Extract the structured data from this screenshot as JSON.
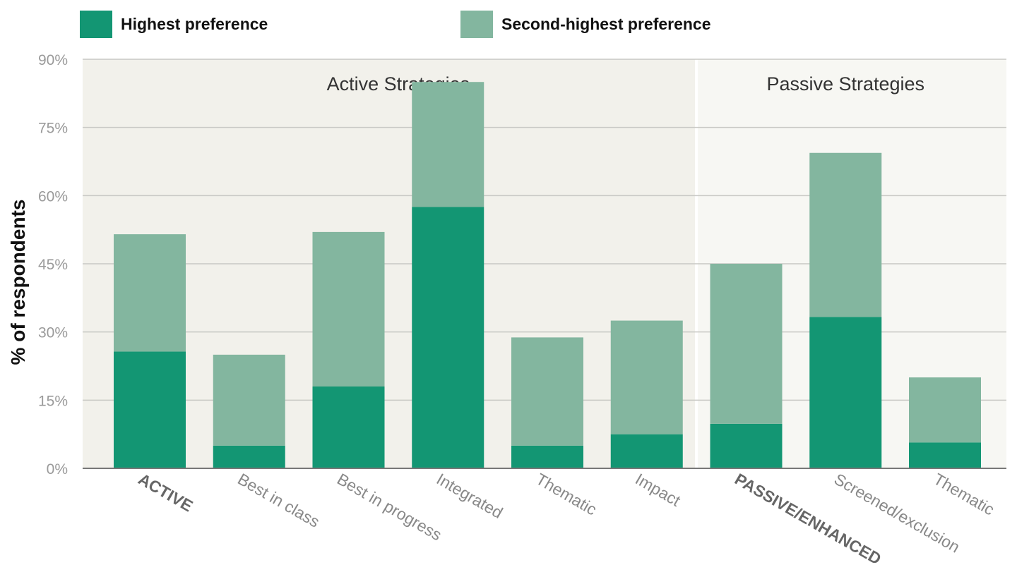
{
  "chart_data": {
    "type": "bar",
    "stacked": true,
    "ylabel": "% of respondents",
    "ylim": [
      0,
      90
    ],
    "yticks": [
      "0%",
      "15%",
      "30%",
      "45%",
      "60%",
      "75%",
      "90%"
    ],
    "ytick_values": [
      0,
      15,
      30,
      45,
      60,
      75,
      90
    ],
    "grid": true,
    "legend_position": "top",
    "categories": [
      "ACTIVE",
      "Best in class",
      "Best in progress",
      "Integrated",
      "Thematic",
      "Impact",
      "PASSIVE/ENHANCED",
      "Screened/exclusion",
      "Thematic"
    ],
    "category_bold": [
      true,
      false,
      false,
      false,
      false,
      false,
      true,
      false,
      false
    ],
    "series": [
      {
        "name": "Highest preference",
        "color": "#139673",
        "values": [
          25.7,
          5.0,
          18.0,
          57.5,
          5.0,
          7.5,
          9.8,
          33.3,
          5.7
        ]
      },
      {
        "name": "Second-highest preference",
        "color": "#83b69f",
        "values": [
          25.8,
          20.0,
          34.0,
          27.5,
          23.8,
          25.0,
          35.2,
          36.1,
          14.3
        ]
      }
    ],
    "regions": [
      {
        "label": "Active Strategies",
        "from": 0,
        "to": 5,
        "color": "#f2f1eb"
      },
      {
        "label": "Passive Strategies",
        "from": 6,
        "to": 8,
        "color": "#f7f7f3"
      }
    ]
  }
}
